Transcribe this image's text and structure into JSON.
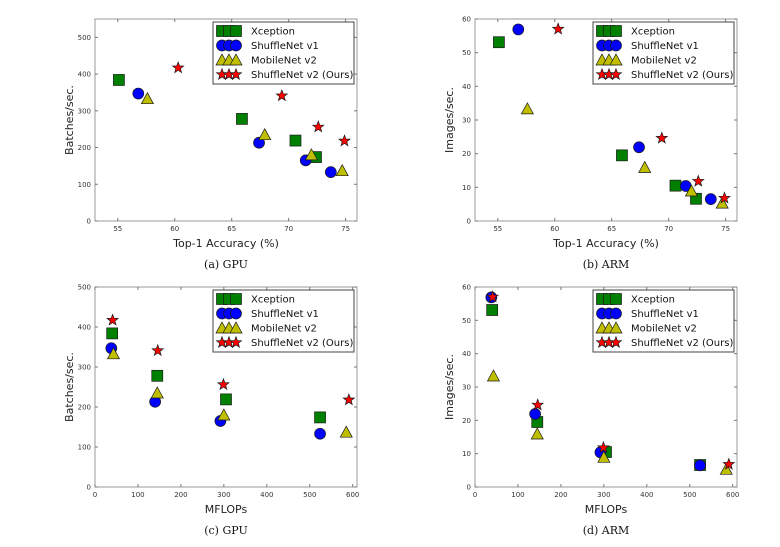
{
  "colors": {
    "Xception": "#008000",
    "ShuffleNet v1": "#0000ff",
    "MobileNet v2": "#bfbf00",
    "ShuffleNet v2 (Ours)": "#ff0000"
  },
  "chart_data": [
    {
      "type": "scatter",
      "caption": "(a) GPU",
      "xlabel": "Top-1 Accuracy (%)",
      "ylabel": "Batches/sec.",
      "xlim": [
        53,
        76
      ],
      "ylim": [
        0,
        550
      ],
      "xticks": [
        55,
        60,
        65,
        70,
        75
      ],
      "yticks": [
        0,
        100,
        200,
        300,
        400,
        500
      ],
      "legend": "top-right",
      "series": [
        {
          "name": "Xception",
          "marker": "square",
          "x": [
            55.1,
            65.9,
            70.6,
            72.4
          ],
          "y": [
            384,
            278,
            219,
            174
          ]
        },
        {
          "name": "ShuffleNet v1",
          "marker": "circle",
          "x": [
            56.8,
            67.4,
            71.5,
            73.7
          ],
          "y": [
            347,
            213,
            165,
            133
          ]
        },
        {
          "name": "MobileNet v2",
          "marker": "triangle",
          "x": [
            57.6,
            67.9,
            72.0,
            74.7
          ],
          "y": [
            333,
            235,
            180,
            137
          ]
        },
        {
          "name": "ShuffleNet v2 (Ours)",
          "marker": "star",
          "x": [
            60.3,
            69.4,
            72.6,
            74.9
          ],
          "y": [
            417,
            341,
            256,
            218
          ]
        }
      ]
    },
    {
      "type": "scatter",
      "caption": "(b) ARM",
      "xlabel": "Top-1 Accuracy (%)",
      "ylabel": "Images/sec.",
      "xlim": [
        53,
        76
      ],
      "ylim": [
        0,
        60
      ],
      "xticks": [
        55,
        60,
        65,
        70,
        75
      ],
      "yticks": [
        0,
        10,
        20,
        30,
        40,
        50,
        60
      ],
      "legend": "top-right",
      "series": [
        {
          "name": "Xception",
          "marker": "square",
          "x": [
            55.1,
            65.9,
            70.6,
            72.4
          ],
          "y": [
            53.1,
            19.5,
            10.5,
            6.6
          ]
        },
        {
          "name": "ShuffleNet v1",
          "marker": "circle",
          "x": [
            56.8,
            67.4,
            71.5,
            73.7
          ],
          "y": [
            56.9,
            21.9,
            10.4,
            6.5
          ]
        },
        {
          "name": "MobileNet v2",
          "marker": "triangle",
          "x": [
            57.6,
            67.9,
            72.0,
            74.7
          ],
          "y": [
            33.3,
            15.9,
            8.9,
            5.3
          ]
        },
        {
          "name": "ShuffleNet v2 (Ours)",
          "marker": "star",
          "x": [
            60.3,
            69.4,
            72.6,
            74.9
          ],
          "y": [
            57.0,
            24.6,
            11.8,
            6.8
          ]
        }
      ]
    },
    {
      "type": "scatter",
      "caption": "(c) GPU",
      "xlabel": "MFLOPs",
      "ylabel": "Batches/sec.",
      "xlim": [
        0,
        610
      ],
      "ylim": [
        0,
        500
      ],
      "xticks": [
        0,
        100,
        200,
        300,
        400,
        500,
        600
      ],
      "yticks": [
        0,
        100,
        200,
        300,
        400,
        500
      ],
      "legend": "top-right",
      "series": [
        {
          "name": "Xception",
          "marker": "square",
          "x": [
            40,
            145,
            305,
            524
          ],
          "y": [
            384,
            278,
            219,
            174
          ]
        },
        {
          "name": "ShuffleNet v1",
          "marker": "circle",
          "x": [
            38,
            140,
            292,
            524
          ],
          "y": [
            347,
            213,
            165,
            133
          ]
        },
        {
          "name": "MobileNet v2",
          "marker": "triangle",
          "x": [
            43,
            145,
            300,
            585
          ],
          "y": [
            333,
            235,
            180,
            137
          ]
        },
        {
          "name": "ShuffleNet v2 (Ours)",
          "marker": "star",
          "x": [
            41,
            146,
            299,
            591
          ],
          "y": [
            417,
            341,
            256,
            218
          ]
        }
      ]
    },
    {
      "type": "scatter",
      "caption": "(d) ARM",
      "xlabel": "MFLOPs",
      "ylabel": "Images/sec.",
      "xlim": [
        0,
        610
      ],
      "ylim": [
        0,
        60
      ],
      "xticks": [
        0,
        100,
        200,
        300,
        400,
        500,
        600
      ],
      "yticks": [
        0,
        10,
        20,
        30,
        40,
        50,
        60
      ],
      "legend": "top-right",
      "series": [
        {
          "name": "Xception",
          "marker": "square",
          "x": [
            40,
            145,
            305,
            524
          ],
          "y": [
            53.1,
            19.5,
            10.5,
            6.6
          ]
        },
        {
          "name": "ShuffleNet v1",
          "marker": "circle",
          "x": [
            38,
            140,
            292,
            524
          ],
          "y": [
            56.9,
            21.9,
            10.4,
            6.5
          ]
        },
        {
          "name": "MobileNet v2",
          "marker": "triangle",
          "x": [
            43,
            145,
            300,
            585
          ],
          "y": [
            33.3,
            15.9,
            8.9,
            5.3
          ]
        },
        {
          "name": "ShuffleNet v2 (Ours)",
          "marker": "star",
          "x": [
            41,
            146,
            299,
            591
          ],
          "y": [
            57.0,
            24.6,
            11.8,
            6.8
          ]
        }
      ]
    }
  ]
}
